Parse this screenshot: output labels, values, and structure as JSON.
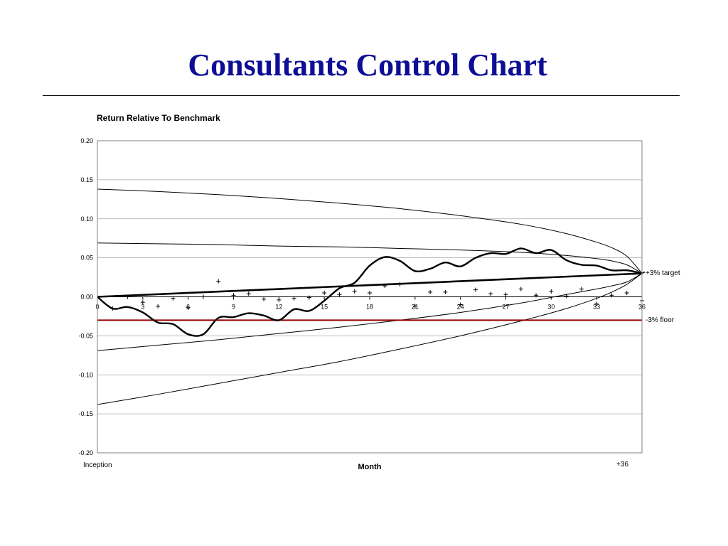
{
  "slide": {
    "title": "Consultants Control Chart"
  },
  "chart_data": {
    "type": "line",
    "title": "Return Relative To Benchmark",
    "xlabel": "Month",
    "ylabel": "",
    "xlim": [
      0,
      36
    ],
    "ylim": [
      -0.2,
      0.2
    ],
    "x_ticks": [
      "0",
      "3",
      "6",
      "9",
      "12",
      "15",
      "18",
      "21",
      "24",
      "27",
      "30",
      "33",
      "36"
    ],
    "y_ticks": [
      "0.20",
      "0.15",
      "0.10",
      "0.05",
      "0.00",
      "-0.05",
      "-0.10",
      "-0.15",
      "-0.20"
    ],
    "horizontal_gridlines": true,
    "annotations": {
      "target": "+3% target",
      "floor": "-3% floor",
      "start": "Inception",
      "end": "+36"
    },
    "target_line": {
      "from": [
        0,
        0.0
      ],
      "to": [
        36,
        0.03
      ]
    },
    "floor_line": {
      "y": -0.03,
      "color": "#990000"
    },
    "control_bands": {
      "x": [
        0,
        4,
        8,
        12,
        16,
        20,
        24,
        28,
        31,
        33,
        34,
        35,
        36
      ],
      "outer_upper": [
        0.138,
        0.135,
        0.131,
        0.126,
        0.12,
        0.113,
        0.104,
        0.093,
        0.081,
        0.07,
        0.063,
        0.052,
        0.03
      ],
      "inner_upper": [
        0.069,
        0.068,
        0.067,
        0.065,
        0.064,
        0.062,
        0.06,
        0.057,
        0.053,
        0.049,
        0.046,
        0.041,
        0.03
      ],
      "inner_lower": [
        -0.069,
        -0.062,
        -0.055,
        -0.047,
        -0.039,
        -0.03,
        -0.02,
        -0.008,
        0.003,
        0.01,
        0.014,
        0.019,
        0.03
      ],
      "outer_lower": [
        -0.138,
        -0.125,
        -0.111,
        -0.097,
        -0.083,
        -0.067,
        -0.05,
        -0.031,
        -0.015,
        -0.002,
        0.006,
        0.016,
        0.03
      ]
    },
    "cumulative_series": {
      "x": [
        0,
        1,
        2,
        3,
        4,
        5,
        6,
        7,
        8,
        9,
        10,
        11,
        12,
        13,
        14,
        15,
        16,
        17,
        18,
        19,
        20,
        21,
        22,
        23,
        24,
        25,
        26,
        27,
        28,
        29,
        30,
        31,
        32,
        33,
        34,
        35,
        36
      ],
      "values": [
        0.0,
        -0.015,
        -0.013,
        -0.02,
        -0.033,
        -0.035,
        -0.048,
        -0.048,
        -0.027,
        -0.026,
        -0.021,
        -0.024,
        -0.03,
        -0.016,
        -0.018,
        -0.005,
        0.011,
        0.018,
        0.04,
        0.051,
        0.046,
        0.033,
        0.036,
        0.044,
        0.039,
        0.05,
        0.056,
        0.055,
        0.062,
        0.056,
        0.06,
        0.047,
        0.041,
        0.04,
        0.034,
        0.034,
        0.03
      ]
    },
    "monthly_points": {
      "x": [
        1,
        2,
        3,
        4,
        5,
        6,
        7,
        8,
        9,
        10,
        11,
        12,
        13,
        14,
        15,
        16,
        17,
        18,
        19,
        20,
        21,
        22,
        23,
        24,
        25,
        26,
        27,
        28,
        29,
        30,
        31,
        32,
        33,
        34,
        35,
        36
      ],
      "values": [
        -0.015,
        0.0,
        -0.007,
        -0.012,
        -0.002,
        -0.014,
        0.0,
        0.02,
        0.002,
        0.004,
        -0.003,
        -0.004,
        -0.002,
        -0.001,
        0.005,
        0.003,
        0.007,
        0.005,
        0.014,
        0.016,
        -0.012,
        0.006,
        0.006,
        -0.01,
        0.009,
        0.004,
        0.003,
        0.01,
        0.002,
        0.007,
        0.001,
        0.01,
        -0.009,
        0.002,
        0.005,
        -0.005
      ]
    }
  }
}
